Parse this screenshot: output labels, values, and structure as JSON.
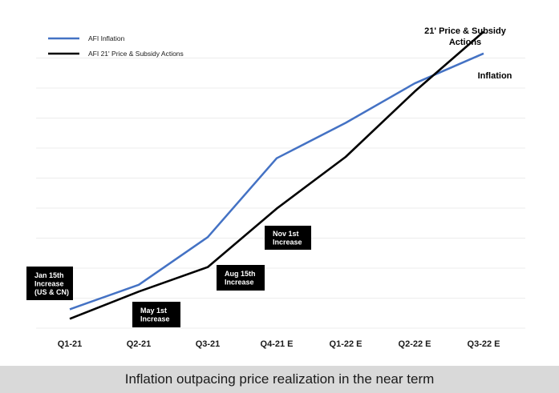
{
  "caption": "Inflation outpacing price realization in the near term",
  "chart_data": {
    "type": "line",
    "categories": [
      "Q1-21",
      "Q2-21",
      "Q3-21",
      "Q4-21 E",
      "Q1-22 E",
      "Q2-22 E",
      "Q3-22 E"
    ],
    "ylim": [
      0,
      10
    ],
    "grid": true,
    "legend_position": "top-left",
    "series": [
      {
        "name": "AFI Inflation",
        "color": "#4472c4",
        "values": [
          0.4,
          1.3,
          3.05,
          5.95,
          7.25,
          8.7,
          9.8
        ]
      },
      {
        "name": "AFI 21' Price & Subsidy Actions",
        "color": "#000000",
        "values": [
          0.05,
          1.05,
          1.95,
          4.1,
          6.0,
          8.4,
          10.6
        ]
      }
    ],
    "end_labels": {
      "price": [
        "21' Price & Subsidy",
        "Actions"
      ],
      "inflation": "Inflation"
    },
    "annotations": [
      {
        "category": "Q1-21",
        "lines": [
          "Jan 15th",
          "Increase",
          "(US & CN)"
        ]
      },
      {
        "category": "Q2-21",
        "lines": [
          "May 1st",
          "Increase"
        ]
      },
      {
        "category": "Q3-21",
        "lines": [
          "Aug 15th",
          "Increase"
        ]
      },
      {
        "category": "Q4-21 E",
        "lines": [
          "Nov 1st",
          "Increase"
        ]
      }
    ]
  }
}
